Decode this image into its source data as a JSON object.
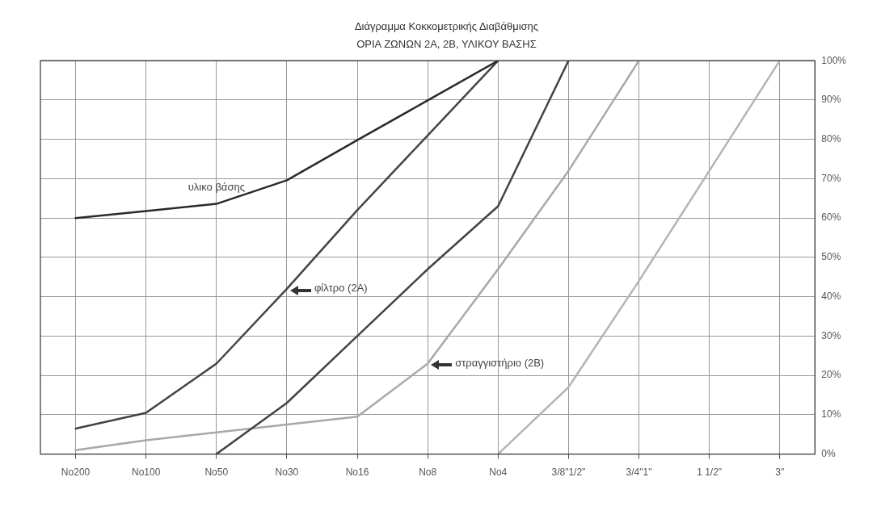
{
  "chart_data": {
    "type": "line",
    "title": "Διάγραμμα Κοκκομετρικής Διαβάθμισης",
    "subtitle": "ΟΡΙΑ ΖΩΝΩΝ 2Α, 2Β, ΥΛΙΚΟΥ ΒΑΣΗΣ",
    "categories": [
      "No200",
      "No100",
      "No50",
      "No30",
      "No16",
      "No8",
      "No4",
      "3/8\"1/2\"",
      "3/4\"1\"",
      "1 1/2\"",
      "3\""
    ],
    "ylim": [
      0,
      100
    ],
    "yticks": [
      {
        "value": 0,
        "label": "0%"
      },
      {
        "value": 10,
        "label": "10%"
      },
      {
        "value": 20,
        "label": "20%"
      },
      {
        "value": 30,
        "label": "30%"
      },
      {
        "value": 40,
        "label": "40%"
      },
      {
        "value": 50,
        "label": "50%"
      },
      {
        "value": 60,
        "label": "60%"
      },
      {
        "value": 70,
        "label": "70%"
      },
      {
        "value": 80,
        "label": "80%"
      },
      {
        "value": 90,
        "label": "90%"
      },
      {
        "value": 100,
        "label": "100%"
      }
    ],
    "grid": true,
    "marker": "none",
    "line_style": "solid",
    "legend": false,
    "series": [
      {
        "color": "#2a2a2a",
        "values": [
          60,
          61.8,
          63.6,
          69.6,
          79.8,
          89.9,
          100,
          null,
          null,
          null,
          null
        ]
      },
      {
        "color": "#444444",
        "values": [
          6.5,
          10.5,
          23,
          42,
          62,
          81,
          100,
          null,
          null,
          null,
          null
        ]
      },
      {
        "color": "#444444",
        "values": [
          null,
          null,
          0,
          13,
          30,
          47,
          63,
          100,
          null,
          null,
          null
        ]
      },
      {
        "color": "#a8a8a8",
        "values": [
          1,
          3.5,
          5.5,
          7.5,
          9.5,
          23,
          47,
          72,
          100,
          null,
          null
        ]
      },
      {
        "color": "#b4b4b4",
        "values": [
          null,
          null,
          null,
          null,
          null,
          null,
          0,
          17,
          44,
          72,
          100
        ]
      }
    ],
    "annotations": [
      {
        "text": "υλικο βάσης",
        "x": "No50",
        "y": 63.6
      },
      {
        "text": "φίλτρο (2Α)",
        "x": "No30",
        "y": 42
      },
      {
        "text": "στραγγιστήριο (2Β)",
        "x": "No8",
        "y": 23
      }
    ]
  }
}
